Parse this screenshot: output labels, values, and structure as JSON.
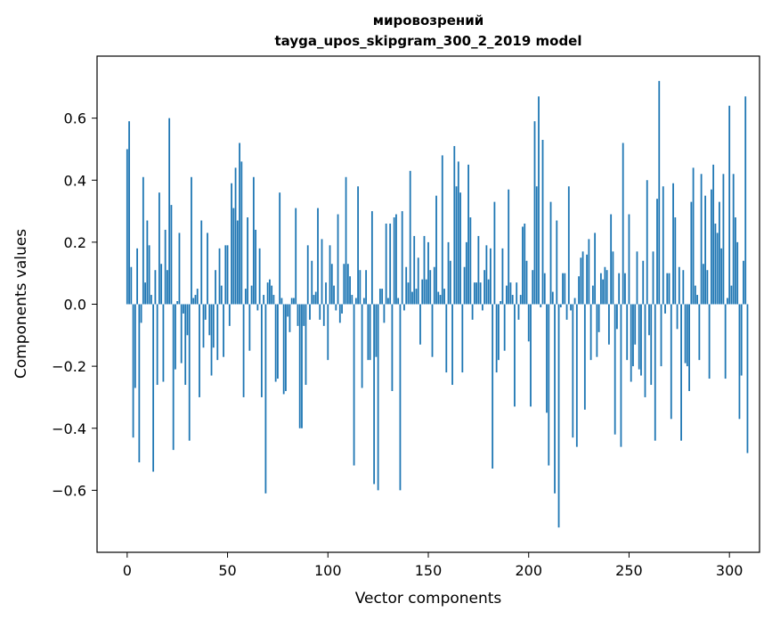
{
  "chart_data": {
    "type": "bar",
    "title": "мировозрений",
    "subtitle": "tayga_upos_skipgram_300_2_2019 model",
    "xlabel": "Vector components",
    "ylabel": "Components values",
    "xlim": [
      -15,
      315
    ],
    "ylim": [
      -0.8,
      0.8
    ],
    "xticks": [
      0,
      50,
      100,
      150,
      200,
      250,
      300
    ],
    "yticks": [
      -0.6,
      -0.4,
      -0.2,
      0.0,
      0.2,
      0.4,
      0.6
    ],
    "xtick_labels": [
      "0",
      "50",
      "100",
      "150",
      "200",
      "250",
      "300"
    ],
    "ytick_labels": [
      "−0.6",
      "−0.4",
      "−0.2",
      "0.0",
      "0.2",
      "0.4",
      "0.6"
    ],
    "grid": false,
    "bar_color": "#1f77b4",
    "values": [
      0.5,
      0.59,
      0.12,
      -0.43,
      -0.27,
      0.18,
      -0.51,
      -0.06,
      0.41,
      0.07,
      0.27,
      0.19,
      0.03,
      -0.54,
      0.11,
      -0.26,
      0.36,
      0.13,
      -0.25,
      0.24,
      0.11,
      0.6,
      0.32,
      -0.47,
      -0.21,
      0.01,
      0.23,
      -0.19,
      -0.03,
      -0.26,
      -0.1,
      -0.44,
      0.41,
      0.02,
      0.03,
      0.05,
      -0.3,
      0.27,
      -0.14,
      -0.05,
      0.23,
      -0.1,
      -0.23,
      -0.14,
      0.11,
      -0.18,
      0.18,
      0.06,
      -0.17,
      0.19,
      0.19,
      -0.07,
      0.39,
      0.31,
      0.44,
      0.27,
      0.52,
      0.46,
      -0.3,
      0.05,
      0.28,
      -0.15,
      0.06,
      0.41,
      0.24,
      -0.02,
      0.18,
      -0.3,
      0.03,
      -0.61,
      0.07,
      0.08,
      0.06,
      0.03,
      -0.25,
      -0.24,
      0.36,
      0.02,
      -0.29,
      -0.28,
      -0.04,
      -0.09,
      0.02,
      0.02,
      0.31,
      -0.07,
      -0.4,
      -0.4,
      -0.07,
      -0.26,
      0.19,
      -0.05,
      0.14,
      0.03,
      0.04,
      0.31,
      -0.05,
      0.21,
      -0.07,
      0.07,
      -0.18,
      0.19,
      0.13,
      0.06,
      -0.02,
      0.29,
      -0.06,
      -0.03,
      0.13,
      0.41,
      0.13,
      0.09,
      0.03,
      -0.52,
      0.02,
      0.38,
      0.11,
      -0.27,
      0.02,
      0.11,
      -0.18,
      -0.18,
      0.3,
      -0.58,
      -0.17,
      -0.6,
      0.05,
      0.05,
      -0.06,
      0.26,
      0.02,
      0.26,
      -0.28,
      0.28,
      0.29,
      0.02,
      -0.6,
      0.3,
      -0.02,
      0.12,
      0.07,
      0.43,
      0.04,
      0.22,
      0.05,
      0.15,
      -0.13,
      0.08,
      0.22,
      0.08,
      0.2,
      0.11,
      -0.17,
      0.12,
      0.35,
      0.04,
      0.03,
      0.48,
      0.05,
      -0.22,
      0.2,
      0.14,
      -0.26,
      0.51,
      0.38,
      0.46,
      0.36,
      -0.22,
      0.12,
      0.2,
      0.45,
      0.28,
      -0.05,
      0.07,
      0.07,
      0.22,
      0.07,
      -0.02,
      0.11,
      0.19,
      0.08,
      0.18,
      -0.53,
      0.33,
      -0.22,
      -0.18,
      0.01,
      0.18,
      -0.15,
      0.06,
      0.37,
      0.07,
      0.03,
      -0.33,
      0.07,
      -0.05,
      0.03,
      0.25,
      0.26,
      0.14,
      -0.12,
      -0.33,
      0.11,
      0.59,
      0.38,
      0.67,
      -0.01,
      0.53,
      0.1,
      -0.35,
      -0.52,
      0.33,
      0.04,
      -0.61,
      0.27,
      -0.72,
      -0.01,
      0.1,
      0.1,
      -0.05,
      0.38,
      -0.02,
      -0.43,
      0.02,
      -0.46,
      0.09,
      0.15,
      0.17,
      -0.34,
      0.16,
      0.21,
      -0.18,
      0.06,
      0.23,
      -0.17,
      -0.09,
      0.1,
      0.08,
      0.12,
      0.11,
      -0.13,
      0.29,
      0.17,
      -0.42,
      -0.08,
      0.1,
      -0.46,
      0.52,
      0.1,
      -0.18,
      0.29,
      -0.25,
      -0.2,
      -0.13,
      0.17,
      -0.21,
      -0.23,
      0.14,
      -0.3,
      0.4,
      -0.1,
      -0.26,
      0.17,
      -0.44,
      0.34,
      0.72,
      -0.2,
      0.38,
      -0.03,
      0.1,
      0.1,
      -0.37,
      0.39,
      0.28,
      -0.08,
      0.12,
      -0.44,
      0.11,
      -0.19,
      -0.2,
      -0.28,
      0.33,
      0.44,
      0.06,
      0.03,
      -0.18,
      0.42,
      0.13,
      0.35,
      0.11,
      -0.24,
      0.37,
      0.45,
      0.26,
      0.23,
      0.33,
      0.18,
      0.42,
      -0.24,
      0.02,
      0.64,
      0.06,
      0.42,
      0.28,
      0.2,
      -0.37,
      -0.23,
      0.14,
      0.67,
      -0.48
    ]
  }
}
